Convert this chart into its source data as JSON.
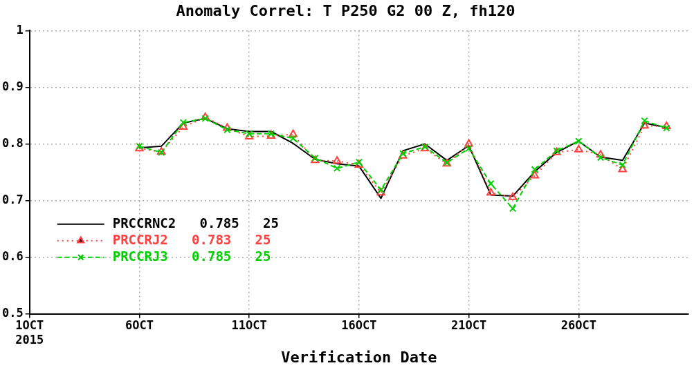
{
  "chart_data": {
    "type": "line",
    "title": "Anomaly Correl: T P250 G2 00 Z, fh120",
    "xlabel": "Verification Date",
    "x": [
      "2015-10-06",
      "2015-10-07",
      "2015-10-08",
      "2015-10-09",
      "2015-10-10",
      "2015-10-11",
      "2015-10-12",
      "2015-10-13",
      "2015-10-14",
      "2015-10-15",
      "2015-10-16",
      "2015-10-17",
      "2015-10-18",
      "2015-10-19",
      "2015-10-20",
      "2015-10-21",
      "2015-10-22",
      "2015-10-23",
      "2015-10-24",
      "2015-10-25",
      "2015-10-26",
      "2015-10-27",
      "2015-10-28",
      "2015-10-29",
      "2015-10-30"
    ],
    "series": [
      {
        "name": "PRCCRNC2   0.785   25",
        "color": "#000000",
        "marker": "none",
        "line_style": "solid",
        "values": [
          0.793,
          0.796,
          0.837,
          0.845,
          0.827,
          0.822,
          0.822,
          0.801,
          0.773,
          0.765,
          0.761,
          0.704,
          0.788,
          0.8,
          0.771,
          0.797,
          0.71,
          0.708,
          0.751,
          0.785,
          0.805,
          0.777,
          0.771,
          0.837,
          0.829
        ]
      },
      {
        "name": "PRCCRJ2   0.783   25",
        "color": "#ff4040",
        "marker": "triangle",
        "line_style": "dotted",
        "values": [
          0.792,
          0.786,
          0.83,
          0.847,
          0.828,
          0.813,
          0.814,
          0.817,
          0.771,
          0.77,
          0.763,
          0.714,
          0.779,
          0.792,
          0.765,
          0.8,
          0.714,
          0.706,
          0.744,
          0.785,
          0.79,
          0.781,
          0.755,
          0.832,
          0.831
        ]
      },
      {
        "name": "PRCCRJ3   0.785   25",
        "color": "#00d000",
        "marker": "cross",
        "line_style": "dashed",
        "values": [
          0.796,
          0.785,
          0.838,
          0.845,
          0.825,
          0.818,
          0.818,
          0.81,
          0.775,
          0.757,
          0.768,
          0.719,
          0.783,
          0.795,
          0.767,
          0.792,
          0.73,
          0.686,
          0.755,
          0.788,
          0.805,
          0.776,
          0.763,
          0.841,
          0.828
        ]
      }
    ],
    "xlim": [
      "2015-10-01",
      "2015-10-31"
    ],
    "xticks": [
      {
        "value": "2015-10-01",
        "label": "1OCT\n2015"
      },
      {
        "value": "2015-10-06",
        "label": "6OCT"
      },
      {
        "value": "2015-10-11",
        "label": "11OCT"
      },
      {
        "value": "2015-10-16",
        "label": "16OCT"
      },
      {
        "value": "2015-10-21",
        "label": "21OCT"
      },
      {
        "value": "2015-10-26",
        "label": "26OCT"
      }
    ],
    "ylim": [
      0.5,
      1
    ],
    "yticks": [
      0.5,
      0.6,
      0.7,
      0.8,
      0.9,
      1
    ],
    "grid": true,
    "legend": "bottom left"
  }
}
